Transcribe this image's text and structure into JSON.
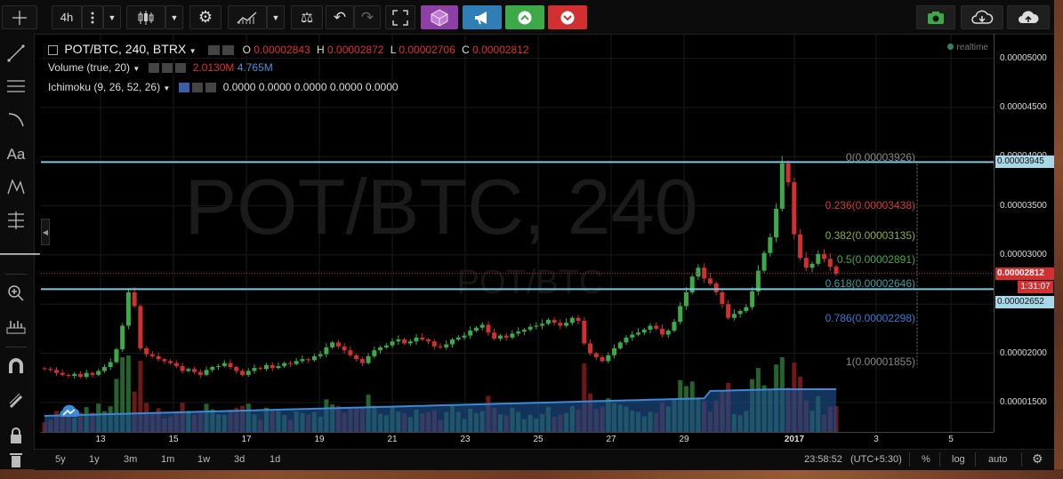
{
  "toolbar": {
    "interval": "4h",
    "more_icon": "vertical-dots-icon",
    "chart_style_icon": "candles-icon",
    "settings_icon": "gear-icon",
    "indicators_icon": "indicators-icon",
    "compare_icon": "scales-icon",
    "undo_icon": "undo-icon",
    "redo_icon": "redo-icon",
    "fullscreen_icon": "fullscreen-icon",
    "right_buttons": [
      "camera-icon",
      "cloud-download-icon",
      "cloud-upload-icon"
    ],
    "colors": {
      "purple": "#8e3fa6",
      "blue": "#2f7fb6",
      "green": "#3daa4a",
      "red": "#d23030"
    }
  },
  "left_tools": [
    "crosshair-icon",
    "trendline-icon",
    "horizontal-lines-icon",
    "arc-icon",
    "text-tool",
    "pattern-icon",
    "fib-icon",
    "arrow-left-icon",
    "zoom-icon",
    "measure-icon",
    "magnet-icon",
    "pencil-icon",
    "lock-icon",
    "trash-icon"
  ],
  "left_tools_text": {
    "text_tool": "Aa"
  },
  "legend": {
    "symbol": "POT/BTC, 240, BTRX",
    "o_label": "O",
    "o": "0.00002843",
    "h_label": "H",
    "h": "0.00002872",
    "l_label": "L",
    "l": "0.00002706",
    "c_label": "C",
    "c": "0.00002812",
    "volume_label": "Volume (true, 20)",
    "volume_v1": "2.0130M",
    "volume_v2": "4.765M",
    "ichimoku_label": "Ichimoku (9, 26, 52, 26)",
    "ichimoku_values": "0.0000 0.0000 0.0000 0.0000 0.0000",
    "realtime": "realtime"
  },
  "watermark": {
    "big": "POT/BTC, 240",
    "small": "POT/BTC"
  },
  "price_axis": {
    "ticks": [
      "0.00005000",
      "0.00004500",
      "0.00004000",
      "0.00003500",
      "0.00003000",
      "0.00002500",
      "0.00002000",
      "0.00001500"
    ],
    "label_top": "0.00003945",
    "label_current": "0.00002812",
    "label_timer": "1:31:07",
    "label_bottom": "0.00002652"
  },
  "fib": [
    {
      "level": "0(0.00003926)",
      "color": "#888888",
      "price": 3.926e-05
    },
    {
      "level": "0.236(0.00003438)",
      "color": "#d23a3a",
      "price": 3.438e-05
    },
    {
      "level": "0.382(0.00003135)",
      "color": "#8fae3a",
      "price": 3.135e-05
    },
    {
      "level": "0.5(0.00002891)",
      "color": "#4aa84a",
      "price": 2.891e-05
    },
    {
      "level": "0.618(0.00002646)",
      "color": "#3aa0a0",
      "price": 2.646e-05
    },
    {
      "level": "0.786(0.00002298)",
      "color": "#3a7ad2",
      "price": 2.298e-05
    },
    {
      "level": "1(0.00001855)",
      "color": "#888888",
      "price": 1.855e-05
    }
  ],
  "time_axis": [
    "13",
    "15",
    "17",
    "19",
    "21",
    "23",
    "25",
    "27",
    "29",
    "2017",
    "3",
    "5"
  ],
  "bottom_bar": {
    "ranges": [
      "5y",
      "1y",
      "3m",
      "1m",
      "1w",
      "3d",
      "1d"
    ],
    "time": "23:58:52",
    "tz": "(UTC+5:30)",
    "percent": "%",
    "log": "log",
    "auto": "auto",
    "settings_icon": "gear-icon"
  },
  "chart_data": {
    "type": "candlestick",
    "ylim": [
      1.2e-05,
      5.25e-05
    ],
    "hlines": [
      3.945e-05,
      2.652e-05
    ],
    "current_price": 2.812e-05,
    "closes": [
      1.84e-05,
      1.83e-05,
      1.8e-05,
      1.78e-05,
      1.77e-05,
      1.79e-05,
      1.76e-05,
      1.8e-05,
      1.78e-05,
      1.82e-05,
      1.86e-05,
      1.91e-05,
      2.04e-05,
      2.28e-05,
      2.62e-05,
      2.48e-05,
      2.05e-05,
      1.99e-05,
      1.97e-05,
      1.94e-05,
      1.92e-05,
      1.9e-05,
      1.87e-05,
      1.82e-05,
      1.84e-05,
      1.81e-05,
      1.78e-05,
      1.83e-05,
      1.86e-05,
      1.87e-05,
      1.9e-05,
      1.86e-05,
      1.82e-05,
      1.78e-05,
      1.82e-05,
      1.85e-05,
      1.84e-05,
      1.88e-05,
      1.85e-05,
      1.87e-05,
      1.9e-05,
      1.89e-05,
      1.92e-05,
      1.94e-05,
      1.93e-05,
      1.97e-05,
      1.99e-05,
      2.06e-05,
      2.11e-05,
      2.07e-05,
      2.03e-05,
      1.98e-05,
      1.94e-05,
      1.9e-05,
      1.97e-05,
      2.03e-05,
      2.06e-05,
      2.08e-05,
      2.12e-05,
      2.14e-05,
      2.1e-05,
      2.12e-05,
      2.16e-05,
      2.14e-05,
      2.12e-05,
      2.07e-05,
      2.06e-05,
      2.09e-05,
      2.14e-05,
      2.16e-05,
      2.18e-05,
      2.23e-05,
      2.26e-05,
      2.29e-05,
      2.21e-05,
      2.15e-05,
      2.18e-05,
      2.16e-05,
      2.2e-05,
      2.22e-05,
      2.24e-05,
      2.27e-05,
      2.28e-05,
      2.3e-05,
      2.34e-05,
      2.31e-05,
      2.28e-05,
      2.31e-05,
      2.36e-05,
      2.33e-05,
      2.1e-05,
      2e-05,
      1.96e-05,
      1.92e-05,
      1.98e-05,
      2.05e-05,
      2.11e-05,
      2.16e-05,
      2.19e-05,
      2.21e-05,
      2.24e-05,
      2.28e-05,
      2.25e-05,
      2.19e-05,
      2.23e-05,
      2.32e-05,
      2.48e-05,
      2.62e-05,
      2.78e-05,
      2.87e-05,
      2.76e-05,
      2.71e-05,
      2.62e-05,
      2.5e-05,
      2.36e-05,
      2.4e-05,
      2.43e-05,
      2.47e-05,
      2.63e-05,
      2.84e-05,
      3.02e-05,
      3.18e-05,
      3.47e-05,
      3.93e-05,
      3.74e-05,
      3.21e-05,
      2.97e-05,
      2.87e-05,
      2.91e-05,
      3.01e-05,
      2.96e-05,
      2.88e-05,
      2.81e-05
    ]
  }
}
